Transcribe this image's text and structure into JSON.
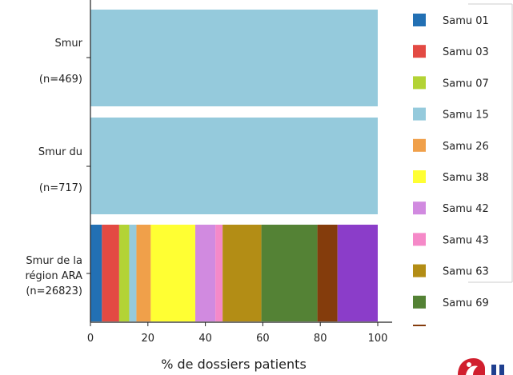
{
  "chart_data": {
    "type": "bar",
    "orientation": "horizontal",
    "stacked": true,
    "xlabel": "% de dossiers patients",
    "xlim": [
      0,
      100
    ],
    "xticks": [
      0,
      20,
      40,
      60,
      80,
      100
    ],
    "categories": [
      {
        "lines": [
          "Smur",
          "(n=469)"
        ]
      },
      {
        "lines": [
          "Smur du",
          "(n=717)"
        ]
      },
      {
        "lines": [
          "Smur de la",
          "région ARA",
          "(n=26823)"
        ]
      }
    ],
    "series": [
      {
        "name": "Samu 01",
        "color": "#2270b4",
        "values": [
          0,
          0,
          4
        ]
      },
      {
        "name": "Samu 03",
        "color": "#e34a43",
        "values": [
          0,
          0,
          6
        ]
      },
      {
        "name": "Samu 07",
        "color": "#b3d335",
        "values": [
          0,
          0,
          3.5
        ]
      },
      {
        "name": "Samu 15",
        "color": "#95cadc",
        "values": [
          100,
          100,
          2.5
        ]
      },
      {
        "name": "Samu 26",
        "color": "#f0a04a",
        "values": [
          0,
          0,
          5
        ]
      },
      {
        "name": "Samu 38",
        "color": "#ffff33",
        "values": [
          0,
          0,
          15.5
        ]
      },
      {
        "name": "Samu 42",
        "color": "#d18ae0",
        "values": [
          0,
          0,
          7
        ]
      },
      {
        "name": "Samu 43",
        "color": "#f589c8",
        "values": [
          0,
          0,
          2.5
        ]
      },
      {
        "name": "Samu 63",
        "color": "#b38d15",
        "values": [
          0,
          0,
          13.5
        ]
      },
      {
        "name": "Samu 69",
        "color": "#548235",
        "values": [
          0,
          0,
          19.5
        ]
      },
      {
        "name": "",
        "color": "#843c0c",
        "values": [
          0,
          0,
          7
        ]
      },
      {
        "name": "",
        "color": "#8b3dc9",
        "values": [
          0,
          0,
          14
        ]
      }
    ],
    "legend": {
      "position": "right",
      "entries": [
        "Samu 01",
        "Samu 03",
        "Samu 07",
        "Samu 15",
        "Samu 26",
        "Samu 38",
        "Samu 42",
        "Samu 43",
        "Samu 63",
        "Samu 69"
      ]
    },
    "grid": false
  }
}
